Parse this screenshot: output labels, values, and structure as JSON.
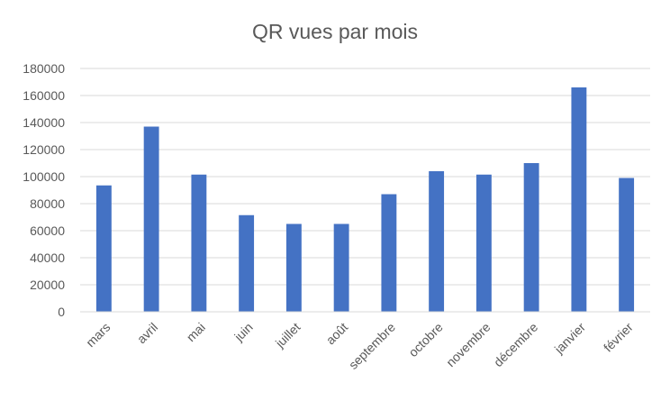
{
  "chart_data": {
    "type": "bar",
    "title": "QR vues par mois",
    "xlabel": "",
    "ylabel": "",
    "categories": [
      "mars",
      "avril",
      "mai",
      "juin",
      "juillet",
      "août",
      "septembre",
      "octobre",
      "novembre",
      "décembre",
      "janvier",
      "février"
    ],
    "series": [
      {
        "values": [
          93500,
          137000,
          101500,
          71500,
          65000,
          65000,
          87000,
          104000,
          101500,
          110000,
          166000,
          99000
        ]
      }
    ],
    "ylim": [
      0,
      180000
    ],
    "yticks": [
      0,
      20000,
      40000,
      60000,
      80000,
      100000,
      120000,
      140000,
      160000,
      180000
    ],
    "grid": true,
    "legend": "none",
    "bar_color": "#4472C4",
    "grid_color": "#D9D9D9"
  }
}
